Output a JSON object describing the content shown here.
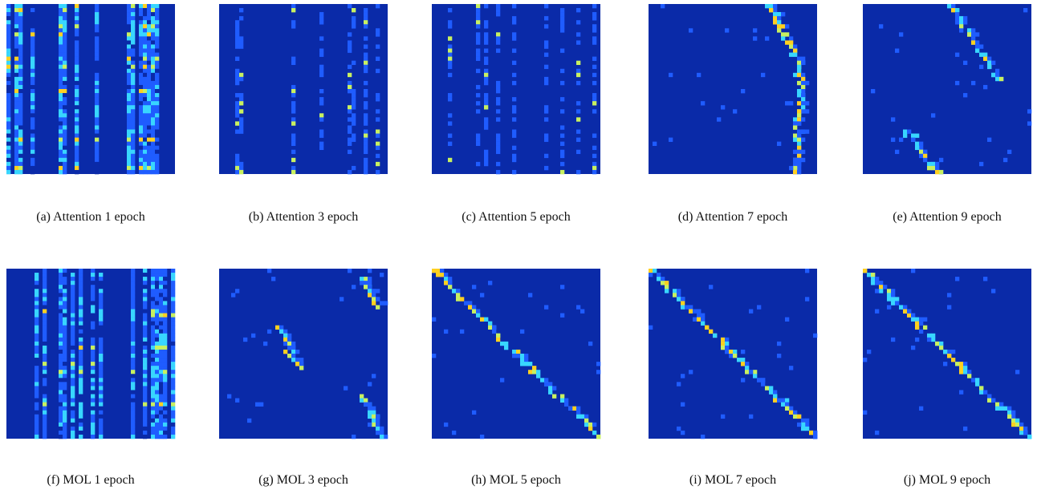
{
  "figure": {
    "panels": [
      {
        "caption": "(a) Attention 1 epoch"
      },
      {
        "caption": "(b) Attention 3 epoch"
      },
      {
        "caption": "(c) Attention 5 epoch"
      },
      {
        "caption": "(d) Attention 7 epoch"
      },
      {
        "caption": "(e) Attention 9 epoch"
      },
      {
        "caption": "(f) MOL 1 epoch"
      },
      {
        "caption": "(g) MOL 3 epoch"
      },
      {
        "caption": "(h) MOL 5 epoch"
      },
      {
        "caption": "(i) MOL 7 epoch"
      },
      {
        "caption": "(j) MOL 9 epoch"
      }
    ]
  }
}
